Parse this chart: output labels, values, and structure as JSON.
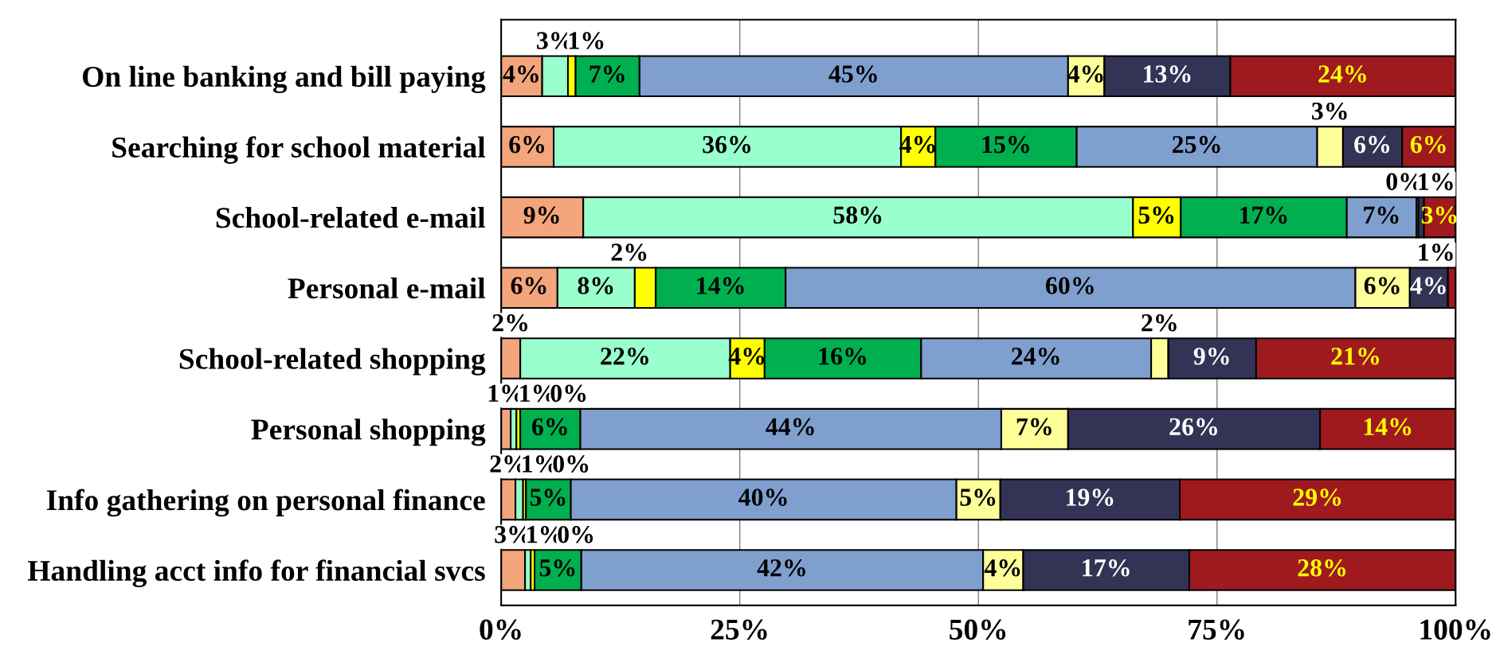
{
  "chart_data": {
    "type": "bar",
    "orientation": "horizontal",
    "stacked": true,
    "categories": [
      "On line banking and bill paying",
      "Searching for school material",
      "School-related e-mail",
      "Personal e-mail",
      "School-related shopping",
      "Personal shopping",
      "Info gathering on personal finance",
      "Handling acct info for financial svcs"
    ],
    "series": [
      {
        "color": "#f4a57c",
        "values": [
          4.3,
          5.5,
          8.6,
          5.9,
          2.0,
          1.0,
          1.5,
          2.5
        ],
        "value_labels": [
          "4%",
          "6%",
          "9%",
          "6%",
          "2%",
          "1%",
          "2%",
          "3%"
        ]
      },
      {
        "color": "#99ffcc",
        "values": [
          2.7,
          36.4,
          57.6,
          8.1,
          22.0,
          0.6,
          0.8,
          0.6
        ],
        "value_labels": [
          "3%",
          "36%",
          "58%",
          "8%",
          "22%",
          "1%",
          "1%",
          "1%"
        ]
      },
      {
        "color": "#ffff00",
        "values": [
          0.8,
          3.6,
          5.0,
          2.2,
          3.6,
          0.4,
          0.3,
          0.4
        ],
        "value_labels": [
          "1%",
          "4%",
          "5%",
          "2%",
          "4%",
          "0%",
          "0%",
          "0%"
        ]
      },
      {
        "color": "#00b050",
        "values": [
          6.7,
          14.8,
          17.4,
          13.6,
          16.4,
          6.3,
          4.7,
          4.9
        ],
        "value_labels": [
          "7%",
          "15%",
          "17%",
          "14%",
          "16%",
          "6%",
          "5%",
          "5%"
        ]
      },
      {
        "color": "#7f9fcf",
        "values": [
          44.9,
          25.2,
          7.3,
          59.7,
          24.1,
          44.1,
          40.4,
          42.1
        ],
        "value_labels": [
          "45%",
          "25%",
          "7%",
          "60%",
          "24%",
          "44%",
          "40%",
          "42%"
        ]
      },
      {
        "color": "#ffff99",
        "values": [
          3.8,
          2.7,
          0.2,
          5.7,
          1.8,
          7.0,
          4.6,
          4.2
        ],
        "value_labels": [
          "4%",
          "3%",
          "0%",
          "6%",
          "2%",
          "7%",
          "5%",
          "4%"
        ]
      },
      {
        "color": "#333355",
        "values": [
          13.2,
          6.2,
          0.6,
          4.0,
          9.2,
          26.4,
          18.8,
          17.4
        ],
        "value_labels": [
          "13%",
          "6%",
          "1%",
          "4%",
          "9%",
          "26%",
          "19%",
          "17%"
        ]
      },
      {
        "color": "#9e1a1f",
        "values": [
          23.6,
          5.6,
          3.3,
          0.8,
          20.9,
          14.2,
          28.9,
          27.9
        ],
        "value_labels": [
          "24%",
          "6%",
          "3%",
          "1%",
          "21%",
          "14%",
          "29%",
          "28%"
        ]
      }
    ],
    "xlim": [
      0,
      100
    ],
    "xticks": [
      {
        "value": 0,
        "label": "0%"
      },
      {
        "value": 25,
        "label": "25%"
      },
      {
        "value": 50,
        "label": "50%"
      },
      {
        "value": 75,
        "label": "75%"
      },
      {
        "value": 100,
        "label": "100%"
      }
    ],
    "grid": "x",
    "legend": false
  }
}
